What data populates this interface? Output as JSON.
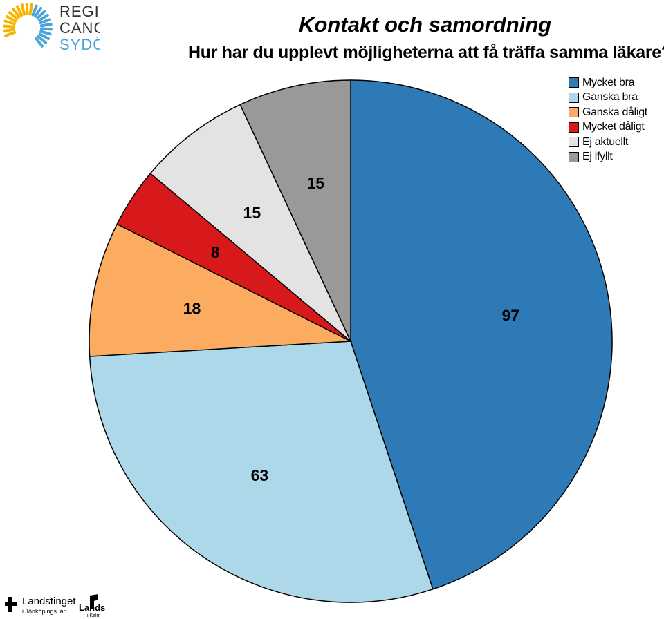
{
  "logo": {
    "lines": [
      "REGIONALT",
      "CANCER",
      "SYDÖST"
    ],
    "colors": [
      "#333333",
      "#333333",
      "#4aa3d9"
    ],
    "ring_colors": [
      "#f5b400",
      "#4aa3d9"
    ]
  },
  "header": {
    "title": "Kontakt och samordning",
    "subtitle": "Hur har du upplevt möjligheterna att få träffa samma läkare?"
  },
  "chart_data": {
    "type": "pie",
    "start": "12 o'clock",
    "direction": "clockwise",
    "slices": [
      {
        "label": "Mycket bra",
        "value": 97,
        "color": "#2e7ab6"
      },
      {
        "label": "Ganska bra",
        "value": 63,
        "color": "#acd8e9"
      },
      {
        "label": "Ganska dåligt",
        "value": 18,
        "color": "#fbac61"
      },
      {
        "label": "Mycket dåligt",
        "value": 8,
        "color": "#d7191c"
      },
      {
        "label": "Ej aktuellt",
        "value": 15,
        "color": "#e3e3e3"
      },
      {
        "label": "Ej ifyllt",
        "value": 15,
        "color": "#999999"
      }
    ],
    "legend_position": "top-right"
  },
  "footer": {
    "org1_name": "Landstinget",
    "org1_sub": "i Jönköpings län",
    "org2_name": "Lands",
    "org2_sub": "i Kalm"
  }
}
